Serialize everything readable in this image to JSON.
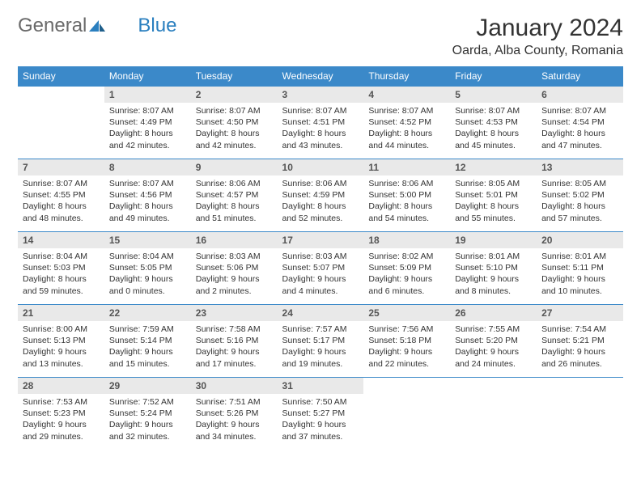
{
  "brand": {
    "part1": "General",
    "part2": "Blue"
  },
  "title": "January 2024",
  "location": "Oarda, Alba County, Romania",
  "colors": {
    "header_bg": "#3b89c9",
    "header_fg": "#ffffff",
    "cell_border": "#3b89c9",
    "daynum_bg": "#e9e9e9",
    "brand_blue": "#2a7fbf"
  },
  "weekdays": [
    "Sunday",
    "Monday",
    "Tuesday",
    "Wednesday",
    "Thursday",
    "Friday",
    "Saturday"
  ],
  "weeks": [
    [
      null,
      {
        "n": "1",
        "sr": "Sunrise: 8:07 AM",
        "ss": "Sunset: 4:49 PM",
        "d1": "Daylight: 8 hours",
        "d2": "and 42 minutes."
      },
      {
        "n": "2",
        "sr": "Sunrise: 8:07 AM",
        "ss": "Sunset: 4:50 PM",
        "d1": "Daylight: 8 hours",
        "d2": "and 42 minutes."
      },
      {
        "n": "3",
        "sr": "Sunrise: 8:07 AM",
        "ss": "Sunset: 4:51 PM",
        "d1": "Daylight: 8 hours",
        "d2": "and 43 minutes."
      },
      {
        "n": "4",
        "sr": "Sunrise: 8:07 AM",
        "ss": "Sunset: 4:52 PM",
        "d1": "Daylight: 8 hours",
        "d2": "and 44 minutes."
      },
      {
        "n": "5",
        "sr": "Sunrise: 8:07 AM",
        "ss": "Sunset: 4:53 PM",
        "d1": "Daylight: 8 hours",
        "d2": "and 45 minutes."
      },
      {
        "n": "6",
        "sr": "Sunrise: 8:07 AM",
        "ss": "Sunset: 4:54 PM",
        "d1": "Daylight: 8 hours",
        "d2": "and 47 minutes."
      }
    ],
    [
      {
        "n": "7",
        "sr": "Sunrise: 8:07 AM",
        "ss": "Sunset: 4:55 PM",
        "d1": "Daylight: 8 hours",
        "d2": "and 48 minutes."
      },
      {
        "n": "8",
        "sr": "Sunrise: 8:07 AM",
        "ss": "Sunset: 4:56 PM",
        "d1": "Daylight: 8 hours",
        "d2": "and 49 minutes."
      },
      {
        "n": "9",
        "sr": "Sunrise: 8:06 AM",
        "ss": "Sunset: 4:57 PM",
        "d1": "Daylight: 8 hours",
        "d2": "and 51 minutes."
      },
      {
        "n": "10",
        "sr": "Sunrise: 8:06 AM",
        "ss": "Sunset: 4:59 PM",
        "d1": "Daylight: 8 hours",
        "d2": "and 52 minutes."
      },
      {
        "n": "11",
        "sr": "Sunrise: 8:06 AM",
        "ss": "Sunset: 5:00 PM",
        "d1": "Daylight: 8 hours",
        "d2": "and 54 minutes."
      },
      {
        "n": "12",
        "sr": "Sunrise: 8:05 AM",
        "ss": "Sunset: 5:01 PM",
        "d1": "Daylight: 8 hours",
        "d2": "and 55 minutes."
      },
      {
        "n": "13",
        "sr": "Sunrise: 8:05 AM",
        "ss": "Sunset: 5:02 PM",
        "d1": "Daylight: 8 hours",
        "d2": "and 57 minutes."
      }
    ],
    [
      {
        "n": "14",
        "sr": "Sunrise: 8:04 AM",
        "ss": "Sunset: 5:03 PM",
        "d1": "Daylight: 8 hours",
        "d2": "and 59 minutes."
      },
      {
        "n": "15",
        "sr": "Sunrise: 8:04 AM",
        "ss": "Sunset: 5:05 PM",
        "d1": "Daylight: 9 hours",
        "d2": "and 0 minutes."
      },
      {
        "n": "16",
        "sr": "Sunrise: 8:03 AM",
        "ss": "Sunset: 5:06 PM",
        "d1": "Daylight: 9 hours",
        "d2": "and 2 minutes."
      },
      {
        "n": "17",
        "sr": "Sunrise: 8:03 AM",
        "ss": "Sunset: 5:07 PM",
        "d1": "Daylight: 9 hours",
        "d2": "and 4 minutes."
      },
      {
        "n": "18",
        "sr": "Sunrise: 8:02 AM",
        "ss": "Sunset: 5:09 PM",
        "d1": "Daylight: 9 hours",
        "d2": "and 6 minutes."
      },
      {
        "n": "19",
        "sr": "Sunrise: 8:01 AM",
        "ss": "Sunset: 5:10 PM",
        "d1": "Daylight: 9 hours",
        "d2": "and 8 minutes."
      },
      {
        "n": "20",
        "sr": "Sunrise: 8:01 AM",
        "ss": "Sunset: 5:11 PM",
        "d1": "Daylight: 9 hours",
        "d2": "and 10 minutes."
      }
    ],
    [
      {
        "n": "21",
        "sr": "Sunrise: 8:00 AM",
        "ss": "Sunset: 5:13 PM",
        "d1": "Daylight: 9 hours",
        "d2": "and 13 minutes."
      },
      {
        "n": "22",
        "sr": "Sunrise: 7:59 AM",
        "ss": "Sunset: 5:14 PM",
        "d1": "Daylight: 9 hours",
        "d2": "and 15 minutes."
      },
      {
        "n": "23",
        "sr": "Sunrise: 7:58 AM",
        "ss": "Sunset: 5:16 PM",
        "d1": "Daylight: 9 hours",
        "d2": "and 17 minutes."
      },
      {
        "n": "24",
        "sr": "Sunrise: 7:57 AM",
        "ss": "Sunset: 5:17 PM",
        "d1": "Daylight: 9 hours",
        "d2": "and 19 minutes."
      },
      {
        "n": "25",
        "sr": "Sunrise: 7:56 AM",
        "ss": "Sunset: 5:18 PM",
        "d1": "Daylight: 9 hours",
        "d2": "and 22 minutes."
      },
      {
        "n": "26",
        "sr": "Sunrise: 7:55 AM",
        "ss": "Sunset: 5:20 PM",
        "d1": "Daylight: 9 hours",
        "d2": "and 24 minutes."
      },
      {
        "n": "27",
        "sr": "Sunrise: 7:54 AM",
        "ss": "Sunset: 5:21 PM",
        "d1": "Daylight: 9 hours",
        "d2": "and 26 minutes."
      }
    ],
    [
      {
        "n": "28",
        "sr": "Sunrise: 7:53 AM",
        "ss": "Sunset: 5:23 PM",
        "d1": "Daylight: 9 hours",
        "d2": "and 29 minutes."
      },
      {
        "n": "29",
        "sr": "Sunrise: 7:52 AM",
        "ss": "Sunset: 5:24 PM",
        "d1": "Daylight: 9 hours",
        "d2": "and 32 minutes."
      },
      {
        "n": "30",
        "sr": "Sunrise: 7:51 AM",
        "ss": "Sunset: 5:26 PM",
        "d1": "Daylight: 9 hours",
        "d2": "and 34 minutes."
      },
      {
        "n": "31",
        "sr": "Sunrise: 7:50 AM",
        "ss": "Sunset: 5:27 PM",
        "d1": "Daylight: 9 hours",
        "d2": "and 37 minutes."
      },
      null,
      null,
      null
    ]
  ]
}
